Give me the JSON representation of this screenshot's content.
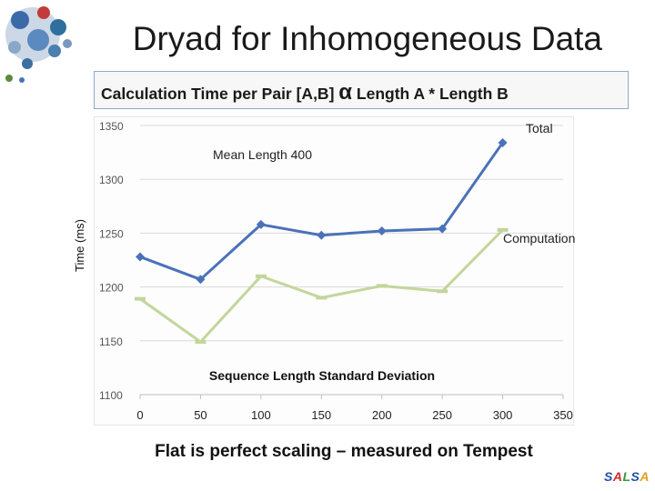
{
  "slide": {
    "title": "Dryad for Inhomogeneous Data",
    "subtitle_left": "Calculation Time per Pair [A,B]",
    "subtitle_symbol": "α",
    "subtitle_right": "Length A * Length B",
    "footer": "Flat is perfect scaling – measured on Tempest",
    "brand": "SALSA",
    "brand_colors": [
      "#1f4fa8",
      "#d62a2a",
      "#2e9a3e",
      "#1f4fa8",
      "#e0a21a"
    ]
  },
  "chart_data": {
    "type": "line",
    "x": [
      0,
      50,
      100,
      150,
      200,
      250,
      300
    ],
    "series": [
      {
        "name": "Total",
        "values": [
          1228,
          1207,
          1258,
          1248,
          1252,
          1254,
          1334
        ],
        "color": "#4a72b8",
        "marker": "diamond"
      },
      {
        "name": "Computation",
        "values": [
          1189,
          1149,
          1210,
          1190,
          1201,
          1196,
          1253
        ],
        "color": "#c2d69b",
        "marker": "dash"
      }
    ],
    "annotation": "Mean Length 400",
    "xlabel": "Sequence Length Standard Deviation",
    "ylabel": "Time (ms)",
    "xlim": [
      0,
      350
    ],
    "ylim": [
      1100,
      1350
    ],
    "xticks": [
      0,
      50,
      100,
      150,
      200,
      250,
      300,
      350
    ],
    "yticks": [
      1100,
      1150,
      1200,
      1250,
      1300,
      1350
    ],
    "grid": "horizontal"
  }
}
